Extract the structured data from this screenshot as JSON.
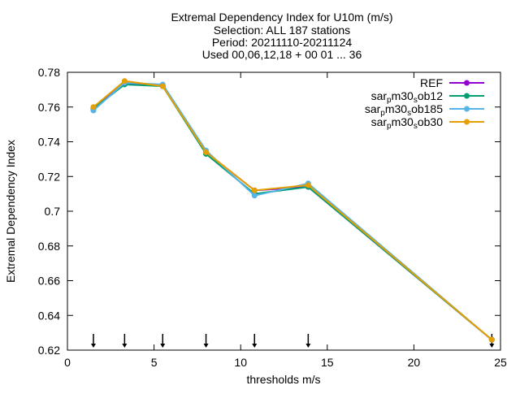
{
  "chart_data": {
    "type": "line",
    "title_lines": [
      "Extremal Dependency Index  for U10m (m/s)",
      "Selection: ALL    187 stations",
      "Period: 20211110-20211124",
      "Used 00,06,12,18 + 00 01 ... 36"
    ],
    "xlabel": "thresholds m/s",
    "ylabel": "Extremal Dependency Index",
    "xlim": [
      0,
      25
    ],
    "ylim": [
      0.62,
      0.78
    ],
    "xticks": [
      0,
      5,
      10,
      15,
      20,
      25
    ],
    "xtick_labels": [
      "0",
      "5",
      "10",
      "15",
      "20",
      "25"
    ],
    "yticks": [
      0.62,
      0.64,
      0.66,
      0.68,
      0.7,
      0.72,
      0.74,
      0.76,
      0.78
    ],
    "ytick_labels": [
      "0.62",
      "0.64",
      "0.66",
      "0.68",
      "0.7",
      "0.72",
      "0.74",
      "0.76",
      "0.78"
    ],
    "grid": false,
    "legend_position": "top-right",
    "threshold_markers": [
      1.5,
      3.3,
      5.5,
      8.0,
      10.8,
      13.9,
      24.5
    ],
    "series": [
      {
        "name": "REF",
        "name_parts": [
          {
            "t": "REF",
            "sub": false
          }
        ],
        "color": "#9400d3",
        "x": [
          1.5,
          3.3,
          5.5,
          8.0,
          10.8,
          13.9,
          24.5
        ],
        "y": [
          0.759,
          0.774,
          0.772,
          0.734,
          0.712,
          0.714,
          0.626
        ]
      },
      {
        "name": "sar_p m30_s ob12",
        "name_parts": [
          {
            "t": "sar",
            "sub": false
          },
          {
            "t": "p",
            "sub": true
          },
          {
            "t": "m30",
            "sub": false
          },
          {
            "t": "s",
            "sub": true
          },
          {
            "t": "ob12",
            "sub": false
          }
        ],
        "color": "#009e73",
        "x": [
          1.5,
          3.3,
          5.5,
          8.0,
          10.8,
          13.9,
          24.5
        ],
        "y": [
          0.759,
          0.773,
          0.772,
          0.733,
          0.71,
          0.714,
          0.626
        ]
      },
      {
        "name": "sar_p m30_s ob185",
        "name_parts": [
          {
            "t": "sar",
            "sub": false
          },
          {
            "t": "p",
            "sub": true
          },
          {
            "t": "m30",
            "sub": false
          },
          {
            "t": "s",
            "sub": true
          },
          {
            "t": "ob185",
            "sub": false
          }
        ],
        "color": "#56b4e9",
        "x": [
          1.5,
          3.3,
          5.5,
          8.0,
          10.8,
          13.9,
          24.5
        ],
        "y": [
          0.758,
          0.774,
          0.773,
          0.735,
          0.709,
          0.716,
          0.626
        ]
      },
      {
        "name": "sar_p m30_s ob30",
        "name_parts": [
          {
            "t": "sar",
            "sub": false
          },
          {
            "t": "p",
            "sub": true
          },
          {
            "t": "m30",
            "sub": false
          },
          {
            "t": "s",
            "sub": true
          },
          {
            "t": "ob30",
            "sub": false
          }
        ],
        "color": "#e69f00",
        "x": [
          1.5,
          3.3,
          5.5,
          8.0,
          10.8,
          13.9,
          24.5
        ],
        "y": [
          0.76,
          0.775,
          0.772,
          0.734,
          0.712,
          0.715,
          0.626
        ]
      }
    ]
  }
}
